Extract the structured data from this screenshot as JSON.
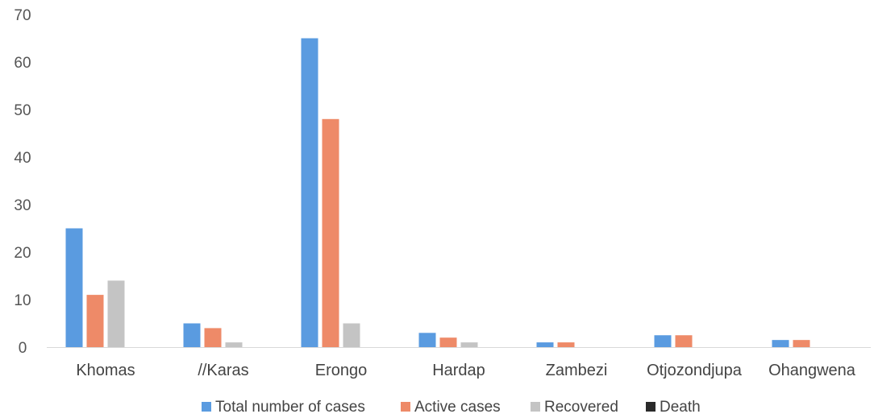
{
  "chart_data": {
    "type": "bar",
    "categories": [
      "Khomas",
      "//Karas",
      "Erongo",
      "Hardap",
      "Zambezi",
      "Otjozondjupa",
      "Ohangwena"
    ],
    "series": [
      {
        "name": "Total number of cases",
        "color": "#5a9be0",
        "values": [
          25,
          5,
          65,
          3,
          1,
          2.5,
          1.5
        ]
      },
      {
        "name": "Active cases",
        "color": "#ee8a68",
        "values": [
          11,
          4,
          48,
          2,
          1,
          2.5,
          1.5
        ]
      },
      {
        "name": "Recovered",
        "color": "#c4c4c4",
        "values": [
          14,
          1,
          5,
          1,
          0,
          0,
          0
        ]
      },
      {
        "name": "Death",
        "color": "#2a2a2a",
        "values": [
          0,
          0,
          0,
          0,
          0,
          0,
          0
        ]
      }
    ],
    "yticks": [
      0,
      10,
      20,
      30,
      40,
      50,
      60,
      70
    ],
    "ylim": [
      0,
      70
    ],
    "grid": false,
    "legend_position": "bottom"
  }
}
